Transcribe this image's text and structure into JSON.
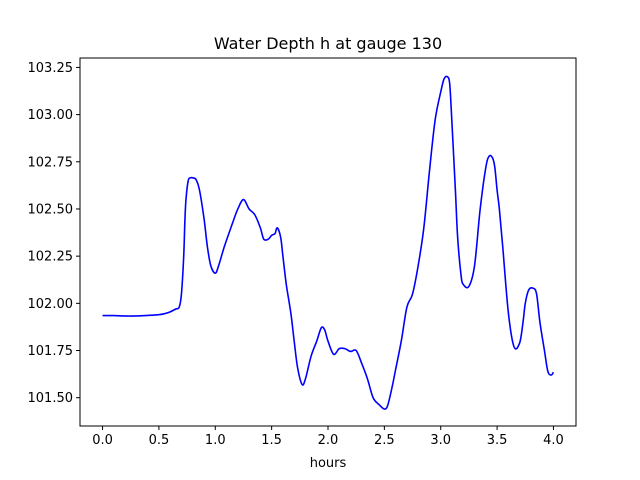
{
  "chart_data": {
    "type": "line",
    "title": "Water Depth h at gauge 130",
    "xlabel": "hours",
    "ylabel": "",
    "xlim": [
      -0.2,
      4.2
    ],
    "ylim": [
      101.35,
      103.3
    ],
    "xticks": [
      0.0,
      0.5,
      1.0,
      1.5,
      2.0,
      2.5,
      3.0,
      3.5,
      4.0
    ],
    "xtick_labels": [
      "0.0",
      "0.5",
      "1.0",
      "1.5",
      "2.0",
      "2.5",
      "3.0",
      "3.5",
      "4.0"
    ],
    "yticks": [
      101.5,
      101.75,
      102.0,
      102.25,
      102.5,
      102.75,
      103.0,
      103.25
    ],
    "ytick_labels": [
      "101.50",
      "101.75",
      "102.00",
      "102.25",
      "102.50",
      "102.75",
      "103.00",
      "103.25"
    ],
    "grid": false,
    "series": [
      {
        "color": "#0000ff",
        "x": [
          0.0,
          0.1,
          0.2,
          0.3,
          0.4,
          0.5,
          0.55,
          0.6,
          0.65,
          0.68,
          0.7,
          0.72,
          0.73,
          0.74,
          0.76,
          0.78,
          0.8,
          0.83,
          0.86,
          0.9,
          0.93,
          0.96,
          1.0,
          1.03,
          1.08,
          1.15,
          1.2,
          1.25,
          1.3,
          1.35,
          1.4,
          1.43,
          1.47,
          1.5,
          1.53,
          1.55,
          1.58,
          1.6,
          1.63,
          1.67,
          1.7,
          1.73,
          1.77,
          1.8,
          1.85,
          1.9,
          1.94,
          1.97,
          2.0,
          2.05,
          2.1,
          2.15,
          2.2,
          2.25,
          2.3,
          2.35,
          2.4,
          2.45,
          2.5,
          2.53,
          2.57,
          2.6,
          2.65,
          2.7,
          2.75,
          2.8,
          2.85,
          2.9,
          2.95,
          3.0,
          3.03,
          3.06,
          3.08,
          3.1,
          3.13,
          3.15,
          3.18,
          3.2,
          3.25,
          3.3,
          3.35,
          3.4,
          3.43,
          3.46,
          3.48,
          3.5,
          3.52,
          3.55,
          3.6,
          3.65,
          3.7,
          3.73,
          3.75,
          3.78,
          3.82,
          3.85,
          3.88,
          3.92,
          3.95,
          3.98,
          4.0
        ],
        "y": [
          101.935,
          101.935,
          101.933,
          101.933,
          101.936,
          101.94,
          101.945,
          101.955,
          101.97,
          101.98,
          102.05,
          102.25,
          102.43,
          102.55,
          102.65,
          102.665,
          102.665,
          102.655,
          102.6,
          102.45,
          102.3,
          102.2,
          102.16,
          102.2,
          102.3,
          102.42,
          102.5,
          102.55,
          102.5,
          102.47,
          102.4,
          102.34,
          102.34,
          102.36,
          102.37,
          102.4,
          102.35,
          102.25,
          102.1,
          101.95,
          101.8,
          101.66,
          101.57,
          101.6,
          101.72,
          101.8,
          101.87,
          101.86,
          101.8,
          101.73,
          101.76,
          101.76,
          101.745,
          101.75,
          101.68,
          101.6,
          101.5,
          101.465,
          101.44,
          101.46,
          101.56,
          101.65,
          101.8,
          101.98,
          102.05,
          102.2,
          102.4,
          102.7,
          102.97,
          103.12,
          103.19,
          103.2,
          103.16,
          102.95,
          102.6,
          102.35,
          102.15,
          102.1,
          102.09,
          102.2,
          102.5,
          102.72,
          102.78,
          102.77,
          102.72,
          102.6,
          102.5,
          102.3,
          101.95,
          101.77,
          101.79,
          101.9,
          102.0,
          102.07,
          102.08,
          102.05,
          101.9,
          101.75,
          101.64,
          101.62,
          101.635
        ]
      }
    ]
  }
}
